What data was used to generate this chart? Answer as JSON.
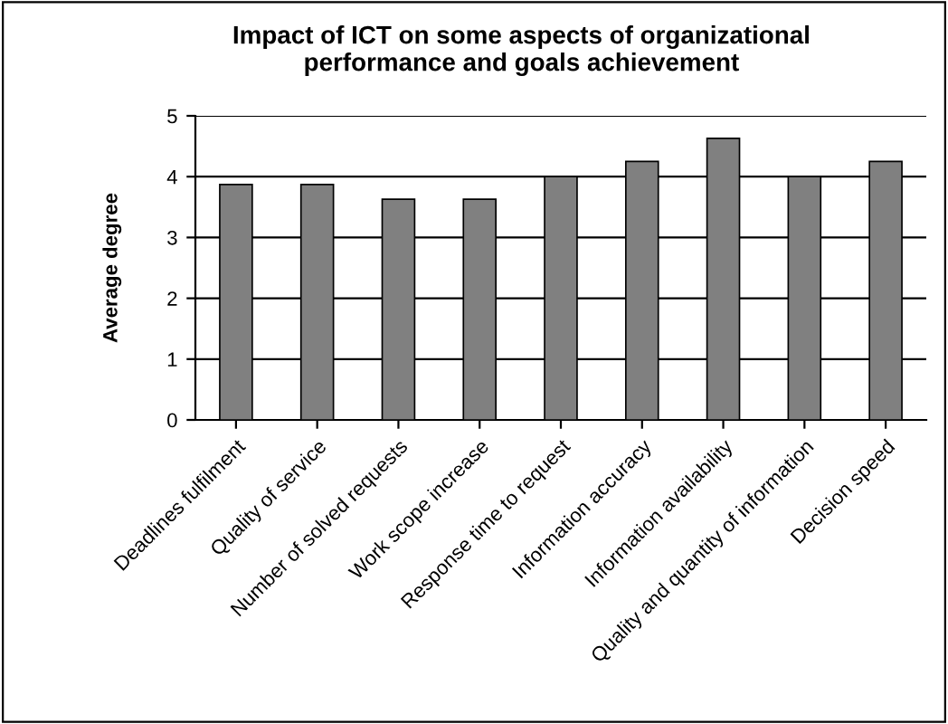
{
  "chart_data": {
    "type": "bar",
    "title": "Impact of ICT on some aspects of organizational\nperformance and goals achievement",
    "ylabel": "Average degree",
    "categories": [
      "Deadlines fulfilment",
      "Quality of service",
      "Number of solved requests",
      "Work scope increase",
      "Response time to request",
      "Information accuracy",
      "Information availability",
      "Quality and quantity of information",
      "Decision speed"
    ],
    "values": [
      3.87,
      3.87,
      3.63,
      3.63,
      4,
      4.25,
      4.63,
      4,
      4.25
    ],
    "color": "#808080",
    "ylim": [
      0,
      5
    ],
    "yticks": [
      0,
      1,
      2,
      3,
      4,
      5
    ],
    "grid": "y"
  }
}
